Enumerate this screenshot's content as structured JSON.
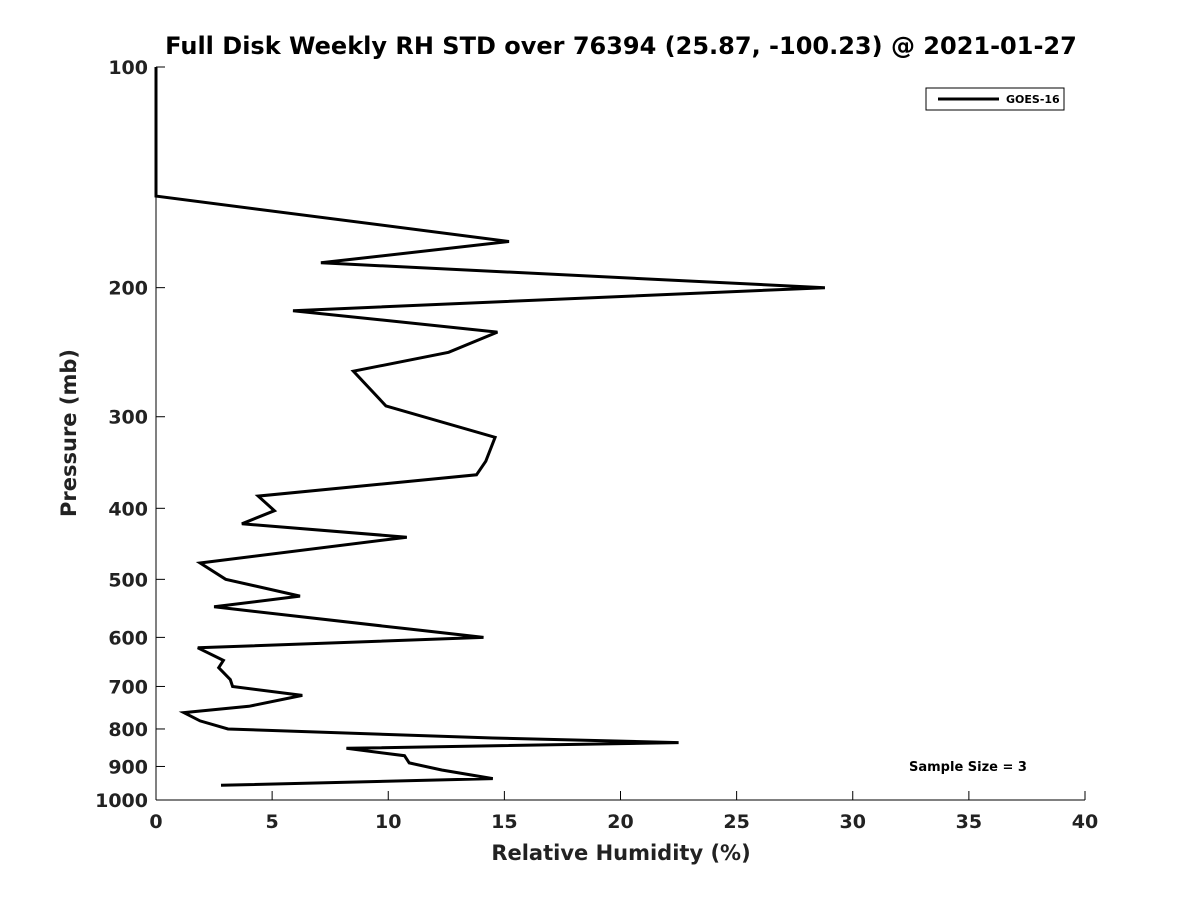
{
  "chart_data": {
    "type": "line",
    "title": "Full Disk Weekly RH STD over 76394 (25.87, -100.23) @ 2021-01-27",
    "xlabel": "Relative Humidity (%)",
    "ylabel": "Pressure (mb)",
    "xlim": [
      0,
      40
    ],
    "ylim": [
      100,
      1000
    ],
    "y_scale": "log",
    "y_reversed": true,
    "xticks": [
      0,
      5,
      10,
      15,
      20,
      25,
      30,
      35,
      40
    ],
    "xtick_labels": [
      "0",
      "5",
      "10",
      "15",
      "20",
      "25",
      "30",
      "35",
      "40"
    ],
    "yticks": [
      100,
      200,
      300,
      400,
      500,
      600,
      700,
      800,
      900,
      1000
    ],
    "ytick_labels": [
      "100",
      "200",
      "300",
      "400",
      "500",
      "600",
      "700",
      "800",
      "900",
      "1000"
    ],
    "grid": false,
    "legend_position": "top-right",
    "annotation": "Sample Size = 3",
    "series": [
      {
        "name": "GOES-16",
        "color": "#000000",
        "points": [
          [
            0,
            100
          ],
          [
            0,
            150
          ],
          [
            15.2,
            173
          ],
          [
            7.1,
            185
          ],
          [
            28.8,
            200
          ],
          [
            5.9,
            215
          ],
          [
            14.7,
            230
          ],
          [
            12.6,
            245
          ],
          [
            8.5,
            260
          ],
          [
            9.9,
            290
          ],
          [
            14.6,
            320
          ],
          [
            14.2,
            345
          ],
          [
            13.8,
            360
          ],
          [
            4.4,
            385
          ],
          [
            5.1,
            403
          ],
          [
            3.7,
            420
          ],
          [
            10.8,
            438
          ],
          [
            1.9,
            475
          ],
          [
            3.0,
            500
          ],
          [
            6.2,
            527
          ],
          [
            2.5,
            545
          ],
          [
            11.0,
            585
          ],
          [
            14.1,
            600
          ],
          [
            1.8,
            620
          ],
          [
            2.9,
            645
          ],
          [
            2.7,
            660
          ],
          [
            3.2,
            685
          ],
          [
            3.3,
            700
          ],
          [
            6.3,
            720
          ],
          [
            4.0,
            745
          ],
          [
            1.2,
            760
          ],
          [
            1.9,
            780
          ],
          [
            3.1,
            800
          ],
          [
            14.5,
            823
          ],
          [
            22.5,
            835
          ],
          [
            8.2,
            850
          ],
          [
            10.7,
            870
          ],
          [
            10.9,
            890
          ],
          [
            12.3,
            910
          ],
          [
            14.5,
            935
          ],
          [
            2.8,
            955
          ]
        ]
      }
    ]
  }
}
